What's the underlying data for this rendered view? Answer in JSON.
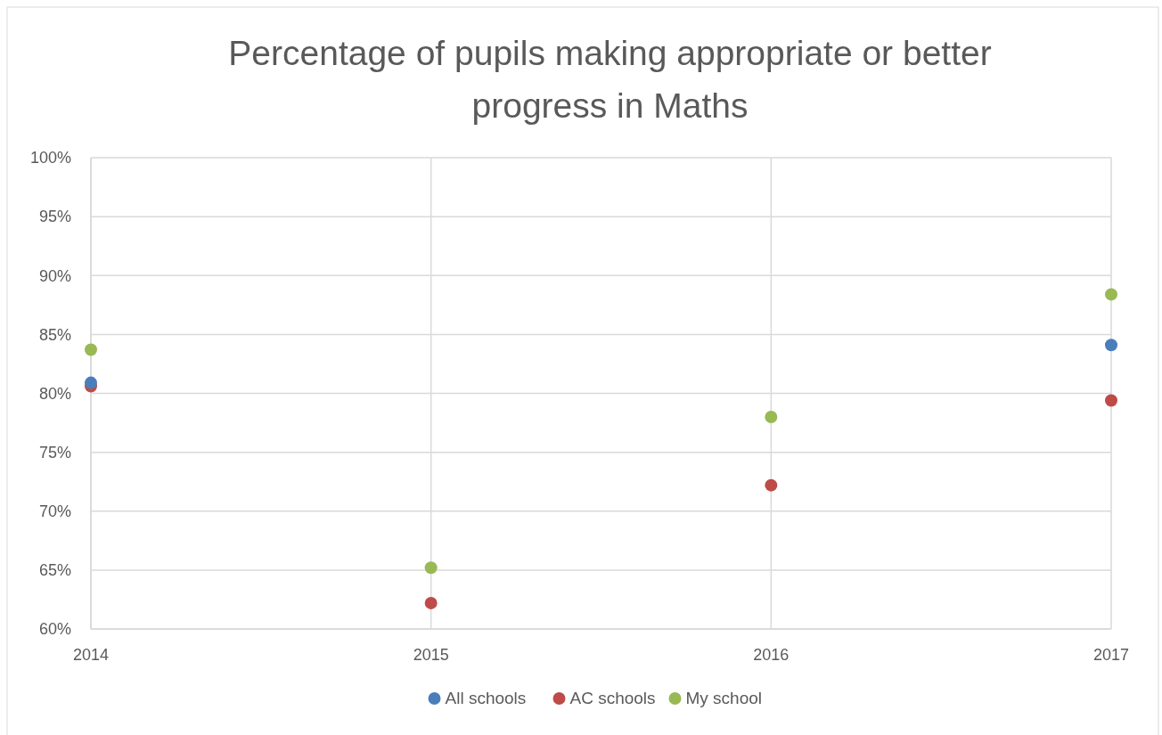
{
  "chart_data": {
    "type": "scatter",
    "title": "Percentage of pupils making appropriate or better progress in Maths",
    "x": [
      2014,
      2015,
      2016,
      2017
    ],
    "series": [
      {
        "name": "All schools",
        "color": "#4a7ebb",
        "values": [
          80.9,
          null,
          null,
          84.1
        ]
      },
      {
        "name": "AC schools",
        "color": "#be4b48",
        "values": [
          80.6,
          62.2,
          72.2,
          79.4
        ]
      },
      {
        "name": "My school",
        "color": "#98b954",
        "values": [
          83.7,
          65.2,
          78.0,
          88.4
        ]
      }
    ],
    "xlim": [
      2014,
      2017
    ],
    "xticks": [
      2014,
      2015,
      2016,
      2017
    ],
    "ylim": [
      60,
      100
    ],
    "yticks": [
      {
        "value": 60,
        "label": "60%"
      },
      {
        "value": 65,
        "label": "65%"
      },
      {
        "value": 70,
        "label": "70%"
      },
      {
        "value": 75,
        "label": "75%"
      },
      {
        "value": 80,
        "label": "80%"
      },
      {
        "value": 85,
        "label": "85%"
      },
      {
        "value": 90,
        "label": "90%"
      },
      {
        "value": 95,
        "label": "95%"
      },
      {
        "value": 100,
        "label": "100%"
      }
    ],
    "grid": true,
    "legend": "bottom",
    "marker": "circle"
  }
}
